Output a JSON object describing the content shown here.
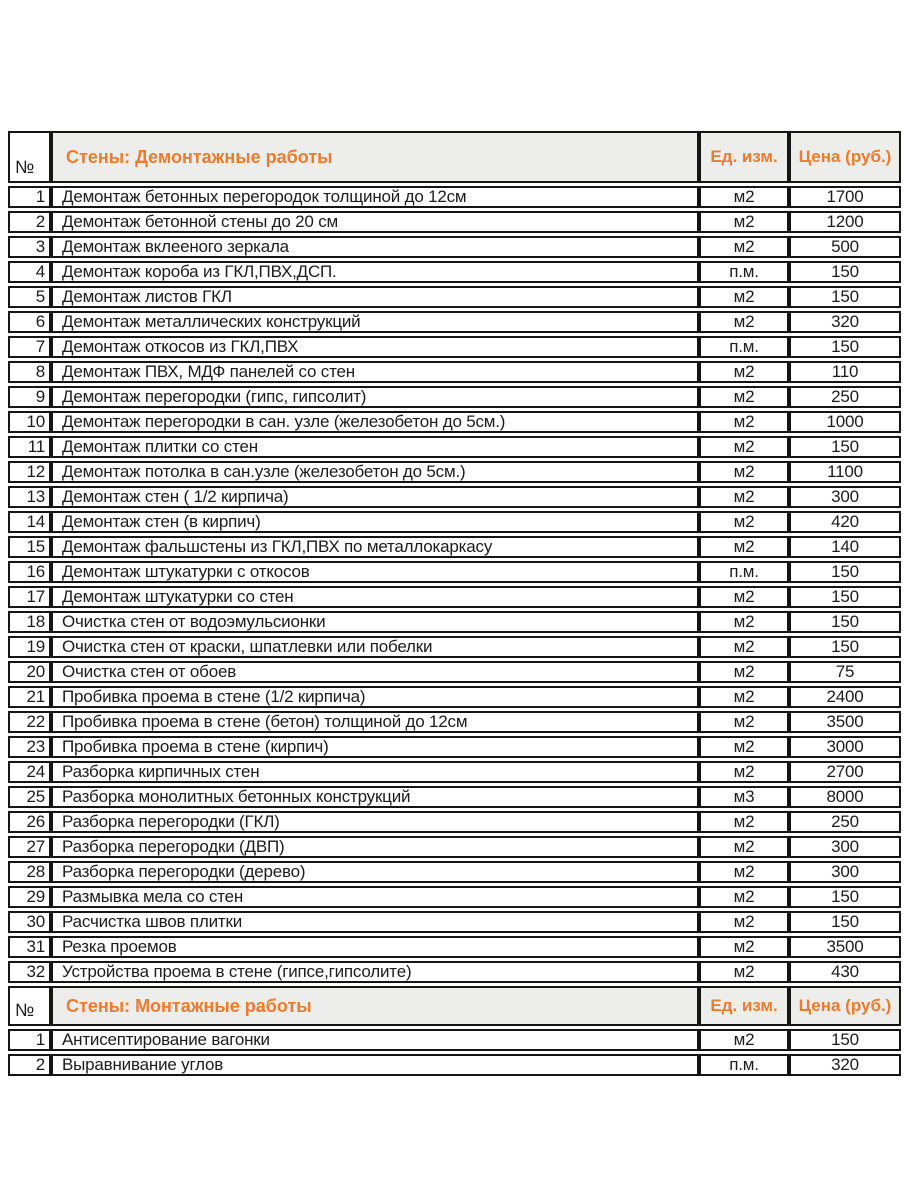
{
  "colors": {
    "accent_orange": "#EF7B2C",
    "header_bg": "#EDEDEB",
    "border": "#151515",
    "text": "#1C1C1C"
  },
  "table": {
    "sections": [
      {
        "header": {
          "num_label": "№",
          "title": "Стены: Демонтажные работы",
          "unit_label": "Ед. изм.",
          "price_label": "Цена (руб.)"
        },
        "rows": [
          {
            "num": "1",
            "name": "Демонтаж бетонных перегородок толщиной до 12см",
            "unit": "м2",
            "price": "1700"
          },
          {
            "num": "2",
            "name": "Демонтаж бетонной стены до 20 см",
            "unit": "м2",
            "price": "1200"
          },
          {
            "num": "3",
            "name": "Демонтаж вклееного зеркала",
            "unit": "м2",
            "price": "500"
          },
          {
            "num": "4",
            "name": "Демонтаж короба из ГКЛ,ПВХ,ДСП.",
            "unit": "п.м.",
            "price": "150"
          },
          {
            "num": "5",
            "name": "Демонтаж листов ГКЛ",
            "unit": "м2",
            "price": "150"
          },
          {
            "num": "6",
            "name": "Демонтаж металлических конструкций",
            "unit": "м2",
            "price": "320"
          },
          {
            "num": "7",
            "name": "Демонтаж откосов из ГКЛ,ПВХ",
            "unit": "п.м.",
            "price": "150"
          },
          {
            "num": "8",
            "name": "Демонтаж ПВХ, МДФ панелей со стен",
            "unit": "м2",
            "price": "110"
          },
          {
            "num": "9",
            "name": "Демонтаж перегородки (гипс, гипсолит)",
            "unit": "м2",
            "price": "250"
          },
          {
            "num": "10",
            "name": "Демонтаж перегородки в сан. узле (железобетон до 5см.)",
            "unit": "м2",
            "price": "1000"
          },
          {
            "num": "11",
            "name": "Демонтаж плитки со стен",
            "unit": "м2",
            "price": "150"
          },
          {
            "num": "12",
            "name": "Демонтаж потолка в сан.узле (железобетон до 5см.)",
            "unit": "м2",
            "price": "1100"
          },
          {
            "num": "13",
            "name": "Демонтаж стен ( 1/2 кирпича)",
            "unit": "м2",
            "price": "300"
          },
          {
            "num": "14",
            "name": "Демонтаж стен (в кирпич)",
            "unit": "м2",
            "price": "420"
          },
          {
            "num": "15",
            "name": "Демонтаж фальшстены из ГКЛ,ПВХ по металлокаркасу",
            "unit": "м2",
            "price": "140"
          },
          {
            "num": "16",
            "name": "Демонтаж штукатурки с откосов",
            "unit": "п.м.",
            "price": "150"
          },
          {
            "num": "17",
            "name": "Демонтаж штукатурки со стен",
            "unit": "м2",
            "price": "150"
          },
          {
            "num": "18",
            "name": "Очистка стен от водоэмульсионки",
            "unit": "м2",
            "price": "150"
          },
          {
            "num": "19",
            "name": "Очистка стен от краски, шпатлевки или побелки",
            "unit": "м2",
            "price": "150"
          },
          {
            "num": "20",
            "name": "Очистка стен от обоев",
            "unit": "м2",
            "price": "75"
          },
          {
            "num": "21",
            "name": "Пробивка проема в стене (1/2 кирпича)",
            "unit": "м2",
            "price": "2400"
          },
          {
            "num": "22",
            "name": "Пробивка проема в стене (бетон) толщиной до 12см",
            "unit": "м2",
            "price": "3500"
          },
          {
            "num": "23",
            "name": "Пробивка проема в стене (кирпич)",
            "unit": "м2",
            "price": "3000"
          },
          {
            "num": "24",
            "name": "Разборка кирпичных стен",
            "unit": "м2",
            "price": "2700"
          },
          {
            "num": "25",
            "name": "Разборка монолитных бетонных конструкций",
            "unit": "м3",
            "price": "8000"
          },
          {
            "num": "26",
            "name": "Разборка перегородки (ГКЛ)",
            "unit": "м2",
            "price": "250"
          },
          {
            "num": "27",
            "name": "Разборка перегородки (ДВП)",
            "unit": "м2",
            "price": "300"
          },
          {
            "num": "28",
            "name": "Разборка перегородки (дерево)",
            "unit": "м2",
            "price": "300"
          },
          {
            "num": "29",
            "name": "Размывка мела со стен",
            "unit": "м2",
            "price": "150"
          },
          {
            "num": "30",
            "name": "Расчистка швов плитки",
            "unit": "м2",
            "price": "150"
          },
          {
            "num": "31",
            "name": "Резка проемов",
            "unit": "м2",
            "price": "3500"
          },
          {
            "num": "32",
            "name": "Устройства проема в стене (гипсе,гипсолите)",
            "unit": "м2",
            "price": "430"
          }
        ]
      },
      {
        "header": {
          "num_label": "№",
          "title": "Стены: Монтажные работы",
          "unit_label": "Ед. изм.",
          "price_label": "Цена (руб.)"
        },
        "rows": [
          {
            "num": "1",
            "name": "Антисептирование вагонки",
            "unit": "м2",
            "price": "150"
          },
          {
            "num": "2",
            "name": "Выравнивание углов",
            "unit": "п.м.",
            "price": "320"
          }
        ]
      }
    ]
  }
}
